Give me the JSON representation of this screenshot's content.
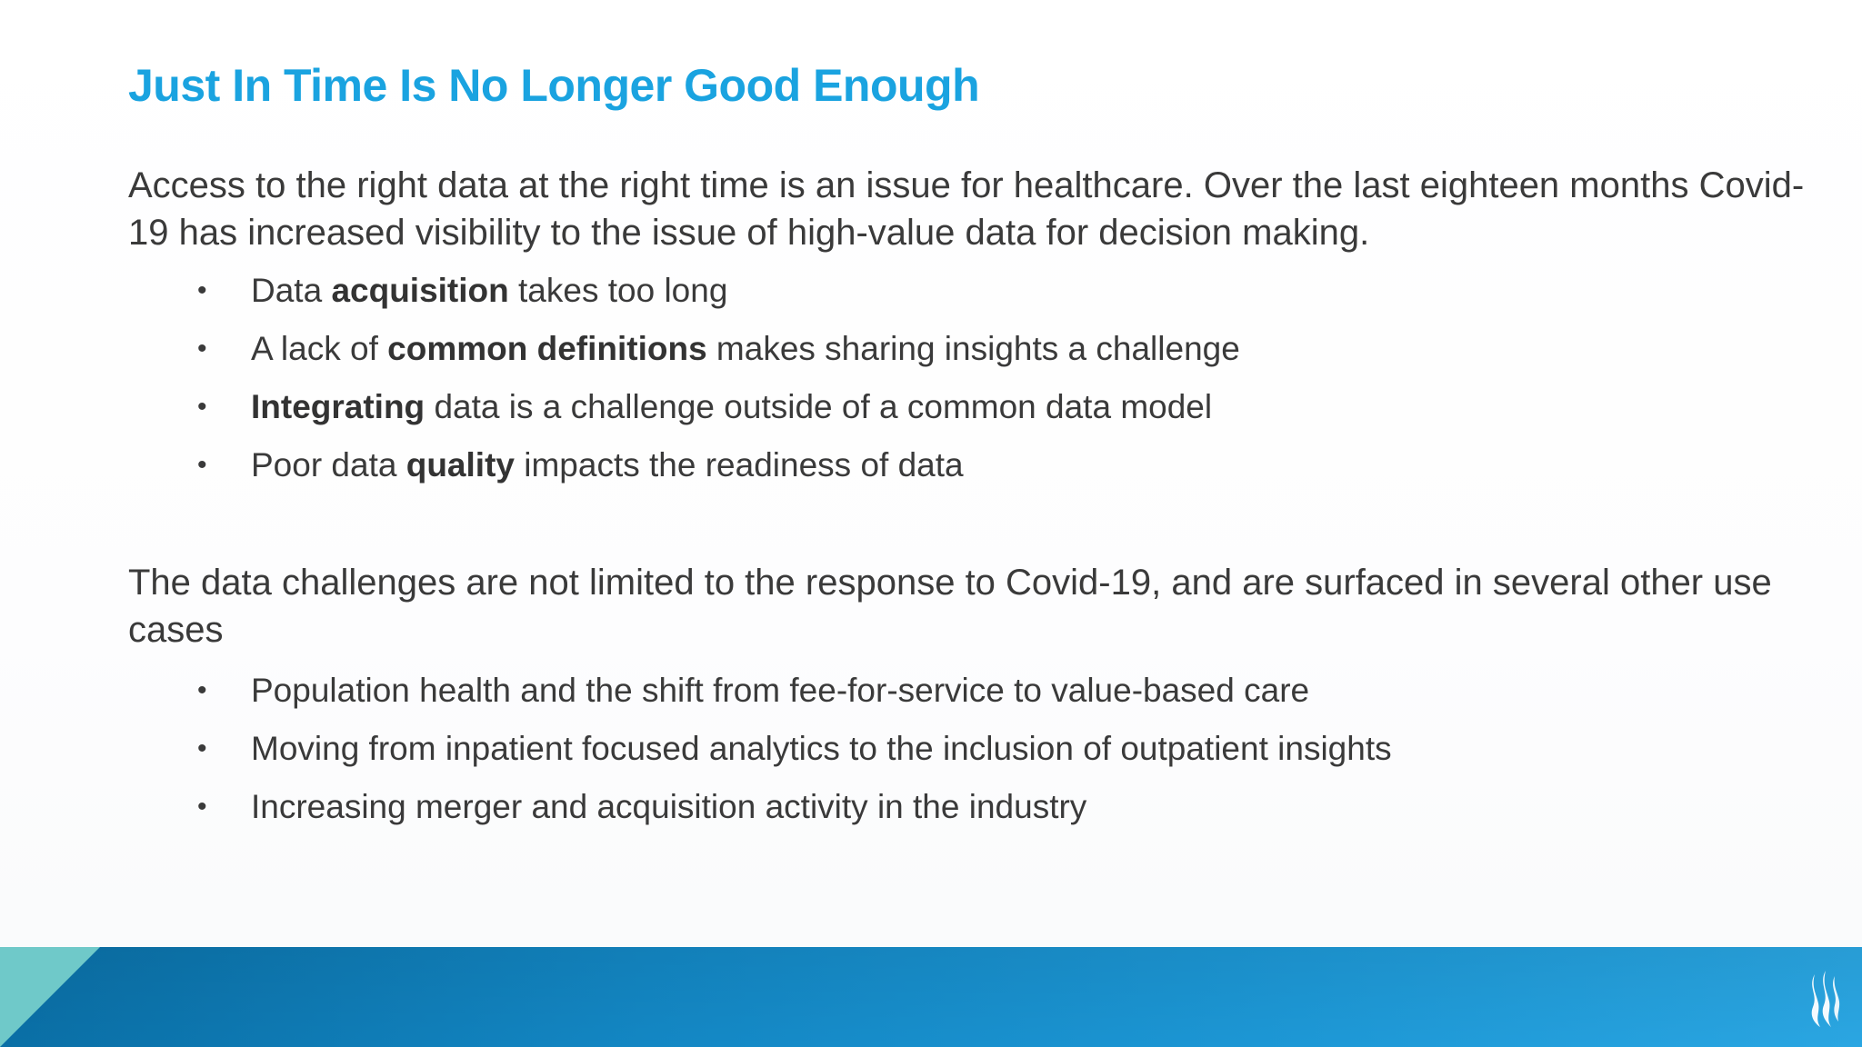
{
  "slide": {
    "title": "Just In Time Is No Longer Good Enough",
    "paragraph_1": "Access to the right data at the right time is an issue for healthcare. Over the last eighteen months Covid-19 has increased visibility to the issue of high-value data for decision making.",
    "bullets_1": [
      {
        "before": "Data ",
        "bold": "acquisition",
        "after": " takes too long"
      },
      {
        "before": "A lack of ",
        "bold": "common definitions",
        "after": " makes sharing insights a challenge"
      },
      {
        "before": "",
        "bold": "Integrating",
        "after": " data is a challenge outside of a common data model"
      },
      {
        "before": "Poor data ",
        "bold": "quality",
        "after": " impacts the readiness of data"
      }
    ],
    "paragraph_2": "The data challenges are not limited to the response to Covid-19, and are surfaced in several other use cases",
    "bullets_2": [
      {
        "text": "Population health and the shift from fee-for-service to value-based care"
      },
      {
        "text": "Moving from inpatient focused analytics to the inclusion of outpatient insights"
      },
      {
        "text": "Increasing merger and acquisition activity in the industry"
      }
    ],
    "bullet_glyph": "•"
  },
  "footer": {
    "logo_icon": "flame-logo-icon"
  },
  "colors": {
    "title": "#1aa3e0",
    "body_text": "#3a3a3a",
    "band_dark": "#0a6fa6",
    "band_light": "#2aa6e2",
    "corner_teal": "#6fc9c9"
  }
}
